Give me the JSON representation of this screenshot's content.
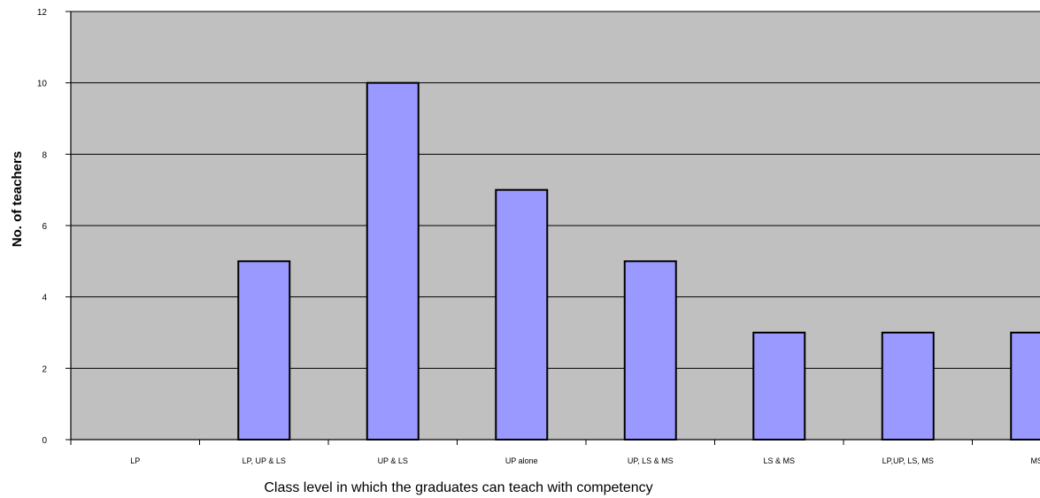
{
  "chart_data": {
    "type": "bar",
    "categories": [
      "LP",
      "LP, UP & LS",
      "UP & LS",
      "UP alone",
      "UP, LS & MS",
      "LS & MS",
      "LP,UP, LS, MS",
      "MS"
    ],
    "values": [
      0,
      5,
      10,
      7,
      5,
      3,
      3,
      3
    ],
    "title": "",
    "xlabel": "Class level in which the graduates can teach with competency",
    "ylabel": "No. of teachers",
    "ylim": [
      0,
      12
    ],
    "yticks": [
      0,
      2,
      4,
      6,
      8,
      10,
      12
    ],
    "grid": true,
    "legend": "none",
    "colors": {
      "plot_background": "#c0c0c0",
      "bar_fill": "#9999ff",
      "bar_stroke": "#000000",
      "gridline": "#000000"
    }
  }
}
